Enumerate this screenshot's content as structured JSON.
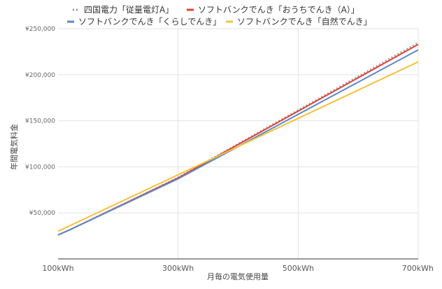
{
  "chart_data": {
    "type": "line",
    "title": "",
    "xlabel": "月毎の電気使用量",
    "ylabel": "年間電気料金",
    "x_unit": "kWh",
    "xlim": [
      100,
      700
    ],
    "ylim": [
      0,
      250000
    ],
    "x_ticks": [
      100,
      300,
      500,
      700
    ],
    "x_tick_labels": [
      "100kWh",
      "300kWh",
      "500kWh",
      "700kWh"
    ],
    "y_ticks": [
      50000,
      100000,
      150000,
      200000,
      250000
    ],
    "y_tick_labels": [
      "¥50,000",
      "¥100,000",
      "¥150,000",
      "¥200,000",
      "¥250,000"
    ],
    "grid": true,
    "legend_position": "top",
    "series": [
      {
        "name": "四国電力「従量電灯A」",
        "color": "#999999",
        "style": "dotted",
        "x": [
          100,
          120,
          300,
          700
        ],
        "y": [
          26000,
          31800,
          88500,
          235000
        ]
      },
      {
        "name": "ソフトバンクでんき「おうちでんき（A）」",
        "color": "#dc4438",
        "style": "solid",
        "x": [
          100,
          120,
          300,
          700
        ],
        "y": [
          26000,
          31800,
          88000,
          233000
        ]
      },
      {
        "name": "ソフトバンクでんき「くらしでんき」",
        "color": "#5f87c6",
        "style": "solid",
        "x": [
          100,
          120,
          300,
          700
        ],
        "y": [
          26000,
          31800,
          87000,
          227000
        ]
      },
      {
        "name": "ソフトバンクでんき「自然でんき」",
        "color": "#f0c23b",
        "style": "solid",
        "x": [
          100,
          700
        ],
        "y": [
          30000,
          214000
        ]
      }
    ]
  }
}
